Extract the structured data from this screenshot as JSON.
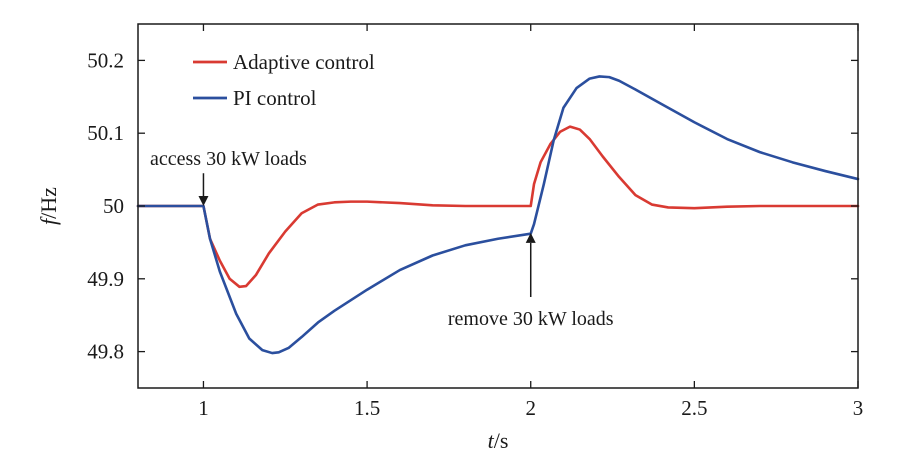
{
  "chart_data": {
    "type": "line",
    "xlabel": {
      "var": "t",
      "unit": "/s"
    },
    "ylabel": {
      "var": "f",
      "unit": "/Hz"
    },
    "xlim": [
      0.8,
      3.0
    ],
    "ylim": [
      49.75,
      50.25
    ],
    "xticks": [
      {
        "value": 1,
        "label": "1"
      },
      {
        "value": 1.5,
        "label": "1.5"
      },
      {
        "value": 2,
        "label": "2"
      },
      {
        "value": 2.5,
        "label": "2.5"
      },
      {
        "value": 3,
        "label": "3"
      }
    ],
    "yticks": [
      {
        "value": 49.8,
        "label": "49.8"
      },
      {
        "value": 49.9,
        "label": "49.9"
      },
      {
        "value": 50.0,
        "label": "50"
      },
      {
        "value": 50.1,
        "label": "50.1"
      },
      {
        "value": 50.2,
        "label": "50.2"
      }
    ],
    "grid": false,
    "legend": "top-left",
    "series": [
      {
        "name": "Adaptive control",
        "color": "#d93a32",
        "x": [
          0.8,
          1.0,
          1.02,
          1.05,
          1.08,
          1.11,
          1.13,
          1.16,
          1.2,
          1.25,
          1.3,
          1.35,
          1.4,
          1.45,
          1.5,
          1.6,
          1.7,
          1.8,
          1.9,
          2.0,
          2.01,
          2.03,
          2.06,
          2.09,
          2.12,
          2.15,
          2.18,
          2.22,
          2.27,
          2.32,
          2.37,
          2.42,
          2.5,
          2.6,
          2.7,
          2.8,
          2.9,
          3.0
        ],
        "y": [
          50.0,
          50.0,
          49.955,
          49.925,
          49.9,
          49.889,
          49.89,
          49.905,
          49.935,
          49.965,
          49.99,
          50.002,
          50.005,
          50.006,
          50.006,
          50.004,
          50.001,
          50.0,
          50.0,
          50.0,
          50.03,
          50.06,
          50.085,
          50.102,
          50.109,
          50.105,
          50.092,
          50.068,
          50.04,
          50.015,
          50.002,
          49.998,
          49.997,
          49.999,
          50.0,
          50.0,
          50.0,
          50.0
        ]
      },
      {
        "name": "PI control",
        "color": "#2b4f9e",
        "x": [
          0.8,
          1.0,
          1.02,
          1.05,
          1.1,
          1.14,
          1.18,
          1.21,
          1.23,
          1.26,
          1.3,
          1.35,
          1.4,
          1.5,
          1.6,
          1.7,
          1.8,
          1.9,
          2.0,
          2.01,
          2.04,
          2.07,
          2.1,
          2.14,
          2.18,
          2.21,
          2.24,
          2.27,
          2.32,
          2.4,
          2.5,
          2.6,
          2.7,
          2.8,
          2.9,
          3.0
        ],
        "y": [
          50.0,
          50.0,
          49.955,
          49.91,
          49.852,
          49.818,
          49.802,
          49.798,
          49.799,
          49.805,
          49.82,
          49.84,
          49.856,
          49.885,
          49.912,
          49.932,
          49.946,
          49.955,
          49.962,
          49.975,
          50.03,
          50.09,
          50.135,
          50.162,
          50.175,
          50.178,
          50.177,
          50.172,
          50.16,
          50.14,
          50.115,
          50.092,
          50.074,
          50.06,
          50.048,
          50.037
        ]
      }
    ],
    "annotations": [
      {
        "text": "access 30 kW loads",
        "x": 1.0,
        "y": 50.0,
        "arrow_from_y": 50.045,
        "position": "above-left"
      },
      {
        "text": "remove 30 kW loads",
        "x": 2.0,
        "y": 49.963,
        "arrow_from_y": 49.875,
        "position": "below"
      }
    ]
  }
}
